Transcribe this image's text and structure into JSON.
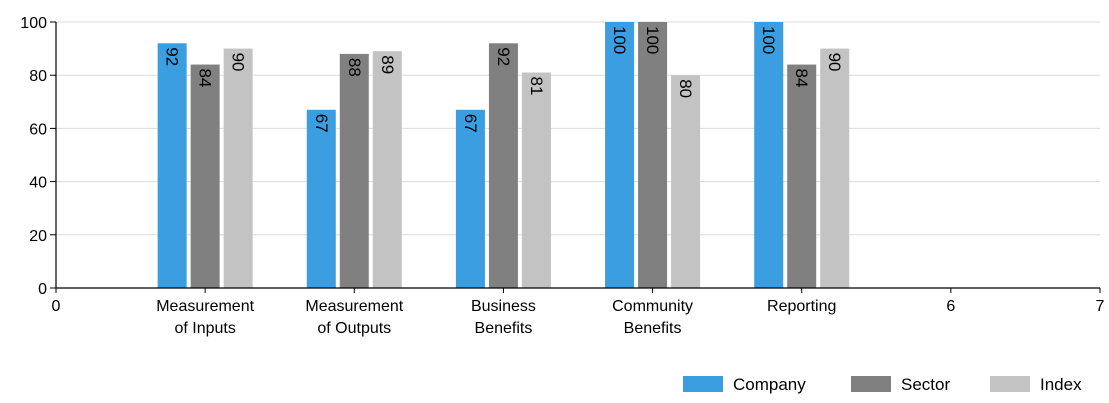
{
  "chart_data": {
    "type": "bar",
    "x_ticks": [
      {
        "x": 0,
        "label": "0"
      },
      {
        "x": 1,
        "label": "Measurement\nof Inputs"
      },
      {
        "x": 2,
        "label": "Measurement\nof Outputs"
      },
      {
        "x": 3,
        "label": "Business\nBenefits"
      },
      {
        "x": 4,
        "label": "Community\nBenefits"
      },
      {
        "x": 5,
        "label": "Reporting"
      },
      {
        "x": 6,
        "label": "6"
      },
      {
        "x": 7,
        "label": "7"
      }
    ],
    "categories": [
      "Measurement of Inputs",
      "Measurement of Outputs",
      "Business Benefits",
      "Community Benefits",
      "Reporting"
    ],
    "category_x": [
      1,
      2,
      3,
      4,
      5
    ],
    "series": [
      {
        "name": "Company",
        "color": "#3a9ee0",
        "values": [
          92,
          67,
          67,
          100,
          100
        ]
      },
      {
        "name": "Sector",
        "color": "#808080",
        "values": [
          84,
          88,
          92,
          100,
          84
        ]
      },
      {
        "name": "Index",
        "color": "#c3c3c3",
        "values": [
          90,
          89,
          81,
          80,
          90
        ]
      }
    ],
    "ylim": [
      0,
      100
    ],
    "xlim": [
      0,
      7
    ],
    "y_ticks": [
      0,
      20,
      40,
      60,
      80,
      100
    ],
    "grid": true,
    "legend_position": "bottom-right",
    "data_labels": "vertical-inside-top"
  }
}
